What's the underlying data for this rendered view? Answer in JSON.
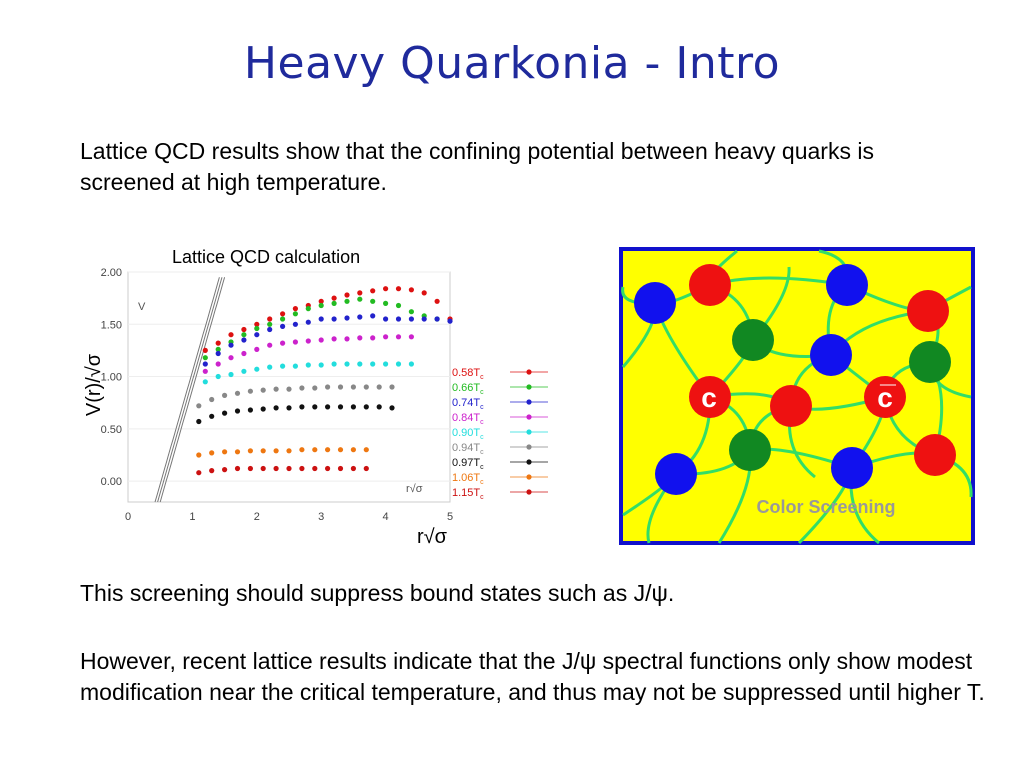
{
  "slide": {
    "title": "Heavy Quarkonia - Intro",
    "intro": "Lattice QCD results show that the confining potential between heavy quarks is screened at high temperature.",
    "screening_note": "This screening should suppress bound states such as J/ψ.",
    "however_note": "However, recent lattice results indicate that the J/ψ spectral functions only show modest modification near the critical temperature, and thus may not be suppressed until higher T."
  },
  "chart_caption": "Lattice QCD calculation",
  "chart_data": {
    "type": "scatter",
    "xlabel": "r√σ",
    "ylabel": "V(r)/√σ",
    "inner_ylabel": "V",
    "inner_xlabel": "r√σ",
    "xlim": [
      0,
      5
    ],
    "ylim": [
      -0.2,
      2.0
    ],
    "x_ticks": [
      0,
      1,
      2,
      3,
      4,
      5
    ],
    "y_ticks": [
      0.0,
      0.5,
      1.0,
      1.5,
      2.0
    ],
    "y_tick_labels": [
      "0.00",
      "0.50",
      "1.00",
      "1.50",
      "2.00"
    ],
    "legend_position": "right",
    "series": [
      {
        "name": "0.58T",
        "sub": "c",
        "color": "#dd1111",
        "x": [
          1.2,
          1.4,
          1.6,
          1.8,
          2.0,
          2.2,
          2.4,
          2.6,
          2.8,
          3.0,
          3.2,
          3.4,
          3.6,
          3.8,
          4.0,
          4.2,
          4.4,
          4.6,
          4.8,
          5.0
        ],
        "y": [
          1.25,
          1.32,
          1.4,
          1.45,
          1.5,
          1.55,
          1.6,
          1.65,
          1.68,
          1.72,
          1.75,
          1.78,
          1.8,
          1.82,
          1.84,
          1.84,
          1.83,
          1.8,
          1.72,
          1.55
        ]
      },
      {
        "name": "0.66T",
        "sub": "c",
        "color": "#22bb22",
        "x": [
          1.2,
          1.4,
          1.6,
          1.8,
          2.0,
          2.2,
          2.4,
          2.6,
          2.8,
          3.0,
          3.2,
          3.4,
          3.6,
          3.8,
          4.0,
          4.2,
          4.4,
          4.6,
          4.8
        ],
        "y": [
          1.18,
          1.26,
          1.33,
          1.4,
          1.46,
          1.5,
          1.55,
          1.6,
          1.65,
          1.68,
          1.7,
          1.72,
          1.74,
          1.72,
          1.7,
          1.68,
          1.62,
          1.58,
          1.55
        ]
      },
      {
        "name": "0.74T",
        "sub": "c",
        "color": "#2222cc",
        "x": [
          1.2,
          1.4,
          1.6,
          1.8,
          2.0,
          2.2,
          2.4,
          2.6,
          2.8,
          3.0,
          3.2,
          3.4,
          3.6,
          3.8,
          4.0,
          4.2,
          4.4,
          4.6,
          4.8,
          5.0
        ],
        "y": [
          1.12,
          1.22,
          1.3,
          1.35,
          1.4,
          1.45,
          1.48,
          1.5,
          1.52,
          1.55,
          1.55,
          1.56,
          1.57,
          1.58,
          1.55,
          1.55,
          1.55,
          1.55,
          1.55,
          1.53
        ]
      },
      {
        "name": "0.84T",
        "sub": "c",
        "color": "#cc22cc",
        "x": [
          1.2,
          1.4,
          1.6,
          1.8,
          2.0,
          2.2,
          2.4,
          2.6,
          2.8,
          3.0,
          3.2,
          3.4,
          3.6,
          3.8,
          4.0,
          4.2,
          4.4
        ],
        "y": [
          1.05,
          1.12,
          1.18,
          1.22,
          1.26,
          1.3,
          1.32,
          1.33,
          1.34,
          1.35,
          1.36,
          1.36,
          1.37,
          1.37,
          1.38,
          1.38,
          1.38
        ]
      },
      {
        "name": "0.90T",
        "sub": "c",
        "color": "#22dddd",
        "x": [
          1.2,
          1.4,
          1.6,
          1.8,
          2.0,
          2.2,
          2.4,
          2.6,
          2.8,
          3.0,
          3.2,
          3.4,
          3.6,
          3.8,
          4.0,
          4.2,
          4.4
        ],
        "y": [
          0.95,
          1.0,
          1.02,
          1.05,
          1.07,
          1.09,
          1.1,
          1.1,
          1.11,
          1.11,
          1.12,
          1.12,
          1.12,
          1.12,
          1.12,
          1.12,
          1.12
        ]
      },
      {
        "name": "0.94T",
        "sub": "c",
        "color": "#888888",
        "x": [
          1.1,
          1.3,
          1.5,
          1.7,
          1.9,
          2.1,
          2.3,
          2.5,
          2.7,
          2.9,
          3.1,
          3.3,
          3.5,
          3.7,
          3.9,
          4.1
        ],
        "y": [
          0.72,
          0.78,
          0.82,
          0.84,
          0.86,
          0.87,
          0.88,
          0.88,
          0.89,
          0.89,
          0.9,
          0.9,
          0.9,
          0.9,
          0.9,
          0.9
        ]
      },
      {
        "name": "0.97T",
        "sub": "c",
        "color": "#111111",
        "x": [
          1.1,
          1.3,
          1.5,
          1.7,
          1.9,
          2.1,
          2.3,
          2.5,
          2.7,
          2.9,
          3.1,
          3.3,
          3.5,
          3.7,
          3.9,
          4.1
        ],
        "y": [
          0.57,
          0.62,
          0.65,
          0.67,
          0.68,
          0.69,
          0.7,
          0.7,
          0.71,
          0.71,
          0.71,
          0.71,
          0.71,
          0.71,
          0.71,
          0.7
        ]
      },
      {
        "name": "1.06T",
        "sub": "c",
        "color": "#ee7711",
        "x": [
          1.1,
          1.3,
          1.5,
          1.7,
          1.9,
          2.1,
          2.3,
          2.5,
          2.7,
          2.9,
          3.1,
          3.3,
          3.5,
          3.7
        ],
        "y": [
          0.25,
          0.27,
          0.28,
          0.28,
          0.29,
          0.29,
          0.29,
          0.29,
          0.3,
          0.3,
          0.3,
          0.3,
          0.3,
          0.3
        ]
      },
      {
        "name": "1.15T",
        "sub": "c",
        "color": "#cc1111",
        "x": [
          1.1,
          1.3,
          1.5,
          1.7,
          1.9,
          2.1,
          2.3,
          2.5,
          2.7,
          2.9,
          3.1,
          3.3,
          3.5,
          3.7
        ],
        "y": [
          0.08,
          0.1,
          0.11,
          0.12,
          0.12,
          0.12,
          0.12,
          0.12,
          0.12,
          0.12,
          0.12,
          0.12,
          0.12,
          0.12
        ]
      }
    ]
  },
  "diagram": {
    "label": "Color Screening",
    "quark_label": "c",
    "antiquark_label": "c̅",
    "colors": {
      "background": "#ffff00",
      "border": "#1111cc",
      "gluon": "#33dd66",
      "red": "#ee1111",
      "green": "#118822",
      "blue": "#1111ee",
      "label": "#999999"
    }
  }
}
